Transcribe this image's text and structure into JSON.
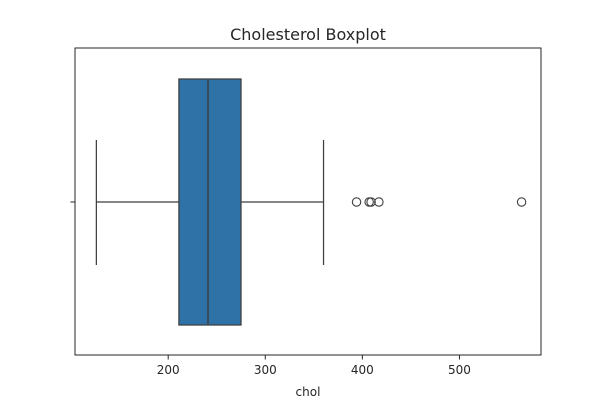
{
  "chart_data": {
    "type": "box",
    "title": "Cholesterol Boxplot",
    "xlabel": "chol",
    "ylabel": "",
    "orientation": "horizontal",
    "xlim": [
      104,
      584
    ],
    "xticks": [
      200,
      300,
      400,
      500
    ],
    "grid": false,
    "series": [
      {
        "whisker_low": 126,
        "q1": 211,
        "median": 241,
        "q3": 275,
        "whisker_high": 360,
        "outliers": [
          394,
          407,
          409,
          417,
          564
        ],
        "fill_color": "#2f72a8"
      }
    ]
  }
}
